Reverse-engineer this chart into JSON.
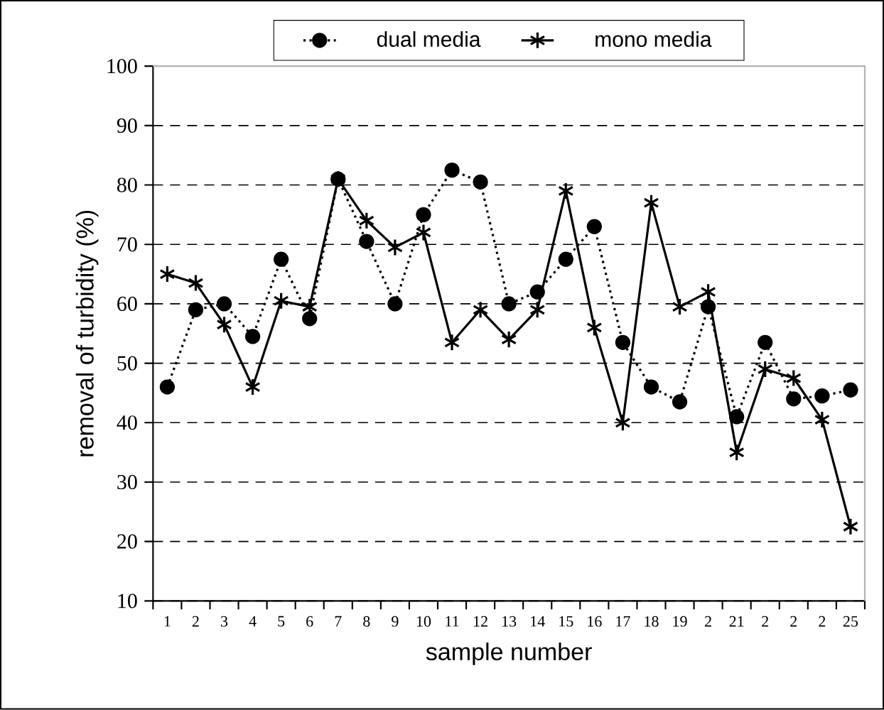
{
  "chart_data": {
    "type": "line",
    "xlabel": "sample number",
    "ylabel": "removal of turbidity (%)",
    "categories": [
      "1",
      "2",
      "3",
      "4",
      "5",
      "6",
      "7",
      "8",
      "9",
      "10",
      "11",
      "12",
      "13",
      "14",
      "15",
      "16",
      "17",
      "18",
      "19",
      "2",
      "21",
      "2",
      "2",
      "2",
      "25"
    ],
    "ylim": [
      10,
      100
    ],
    "yticks": [
      10,
      20,
      30,
      40,
      50,
      60,
      70,
      80,
      90,
      100
    ],
    "grid": "y",
    "legend": "top",
    "series": [
      {
        "name": "dual media",
        "color": "#000000",
        "marker": "circle",
        "line_style": "dotted",
        "values": [
          46,
          59,
          60,
          54.5,
          67.5,
          57.5,
          81,
          70.5,
          60,
          75,
          82.5,
          80.5,
          60,
          62,
          67.5,
          73,
          53.5,
          46,
          43.5,
          59.5,
          41,
          53.5,
          44,
          44.5,
          45.5
        ]
      },
      {
        "name": "mono media",
        "color": "#000000",
        "marker": "cross",
        "line_style": "solid",
        "values": [
          65,
          63.5,
          56.5,
          46,
          60.5,
          59.5,
          81,
          74,
          69.5,
          72,
          53.5,
          59,
          54,
          59,
          79,
          56,
          40,
          77,
          59.5,
          62,
          35,
          49,
          47.5,
          40.5,
          22.5
        ]
      }
    ]
  }
}
